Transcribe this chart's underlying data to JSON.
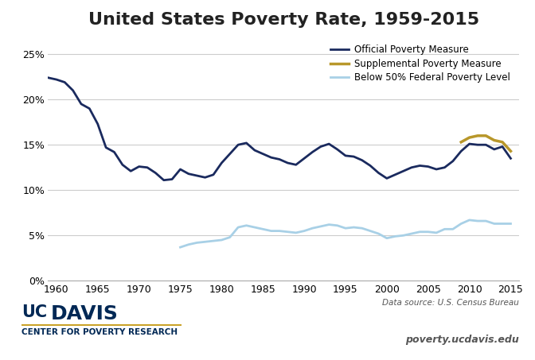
{
  "title": "United States Poverty Rate, 1959-2015",
  "title_fontsize": 16,
  "background_color": "#ffffff",
  "grid_color": "#cccccc",
  "footnote_source": "Data source: U.S. Census Bureau",
  "footnote_url": "poverty.ucdavis.edu",
  "opm_color": "#1a2a5e",
  "spm_color": "#b8972a",
  "fpl_color": "#a8d0e6",
  "opm_label": "Official Poverty Measure",
  "spm_label": "Supplemental Poverty Measure",
  "fpl_label": "Below 50% Federal Poverty Level",
  "opm_years": [
    1959,
    1960,
    1961,
    1962,
    1963,
    1964,
    1965,
    1966,
    1967,
    1968,
    1969,
    1970,
    1971,
    1972,
    1973,
    1974,
    1975,
    1976,
    1977,
    1978,
    1979,
    1980,
    1981,
    1982,
    1983,
    1984,
    1985,
    1986,
    1987,
    1988,
    1989,
    1990,
    1991,
    1992,
    1993,
    1994,
    1995,
    1996,
    1997,
    1998,
    1999,
    2000,
    2001,
    2002,
    2003,
    2004,
    2005,
    2006,
    2007,
    2008,
    2009,
    2010,
    2011,
    2012,
    2013,
    2014,
    2015
  ],
  "opm_values": [
    22.4,
    22.2,
    21.9,
    21.0,
    19.5,
    19.0,
    17.3,
    14.7,
    14.2,
    12.8,
    12.1,
    12.6,
    12.5,
    11.9,
    11.1,
    11.2,
    12.3,
    11.8,
    11.6,
    11.4,
    11.7,
    13.0,
    14.0,
    15.0,
    15.2,
    14.4,
    14.0,
    13.6,
    13.4,
    13.0,
    12.8,
    13.5,
    14.2,
    14.8,
    15.1,
    14.5,
    13.8,
    13.7,
    13.3,
    12.7,
    11.9,
    11.3,
    11.7,
    12.1,
    12.5,
    12.7,
    12.6,
    12.3,
    12.5,
    13.2,
    14.3,
    15.1,
    15.0,
    15.0,
    14.5,
    14.8,
    13.5
  ],
  "spm_years": [
    2009,
    2010,
    2011,
    2012,
    2013,
    2014,
    2015
  ],
  "spm_values": [
    15.3,
    15.8,
    16.0,
    16.0,
    15.5,
    15.3,
    14.3
  ],
  "fpl_years": [
    1975,
    1976,
    1977,
    1978,
    1979,
    1980,
    1981,
    1982,
    1983,
    1984,
    1985,
    1986,
    1987,
    1988,
    1989,
    1990,
    1991,
    1992,
    1993,
    1994,
    1995,
    1996,
    1997,
    1998,
    1999,
    2000,
    2001,
    2002,
    2003,
    2004,
    2005,
    2006,
    2007,
    2008,
    2009,
    2010,
    2011,
    2012,
    2013,
    2014,
    2015
  ],
  "fpl_values": [
    3.7,
    4.0,
    4.2,
    4.3,
    4.4,
    4.5,
    4.8,
    5.9,
    6.1,
    5.9,
    5.7,
    5.5,
    5.5,
    5.4,
    5.3,
    5.5,
    5.8,
    6.0,
    6.2,
    6.1,
    5.8,
    5.9,
    5.8,
    5.5,
    5.2,
    4.7,
    4.9,
    5.0,
    5.2,
    5.4,
    5.4,
    5.3,
    5.7,
    5.7,
    6.3,
    6.7,
    6.6,
    6.6,
    6.3,
    6.3,
    6.3
  ],
  "center_text": "CENTER FOR POVERTY RESEARCH",
  "uc_color": "#002855",
  "gold_color": "#C9A227",
  "yticks": [
    0,
    5,
    10,
    15,
    20,
    25
  ],
  "ylim": [
    0,
    27
  ],
  "xlim": [
    1959,
    2016
  ],
  "xtick_vals": [
    1960,
    1965,
    1970,
    1975,
    1980,
    1985,
    1990,
    1995,
    2000,
    2005,
    2010,
    2015
  ]
}
